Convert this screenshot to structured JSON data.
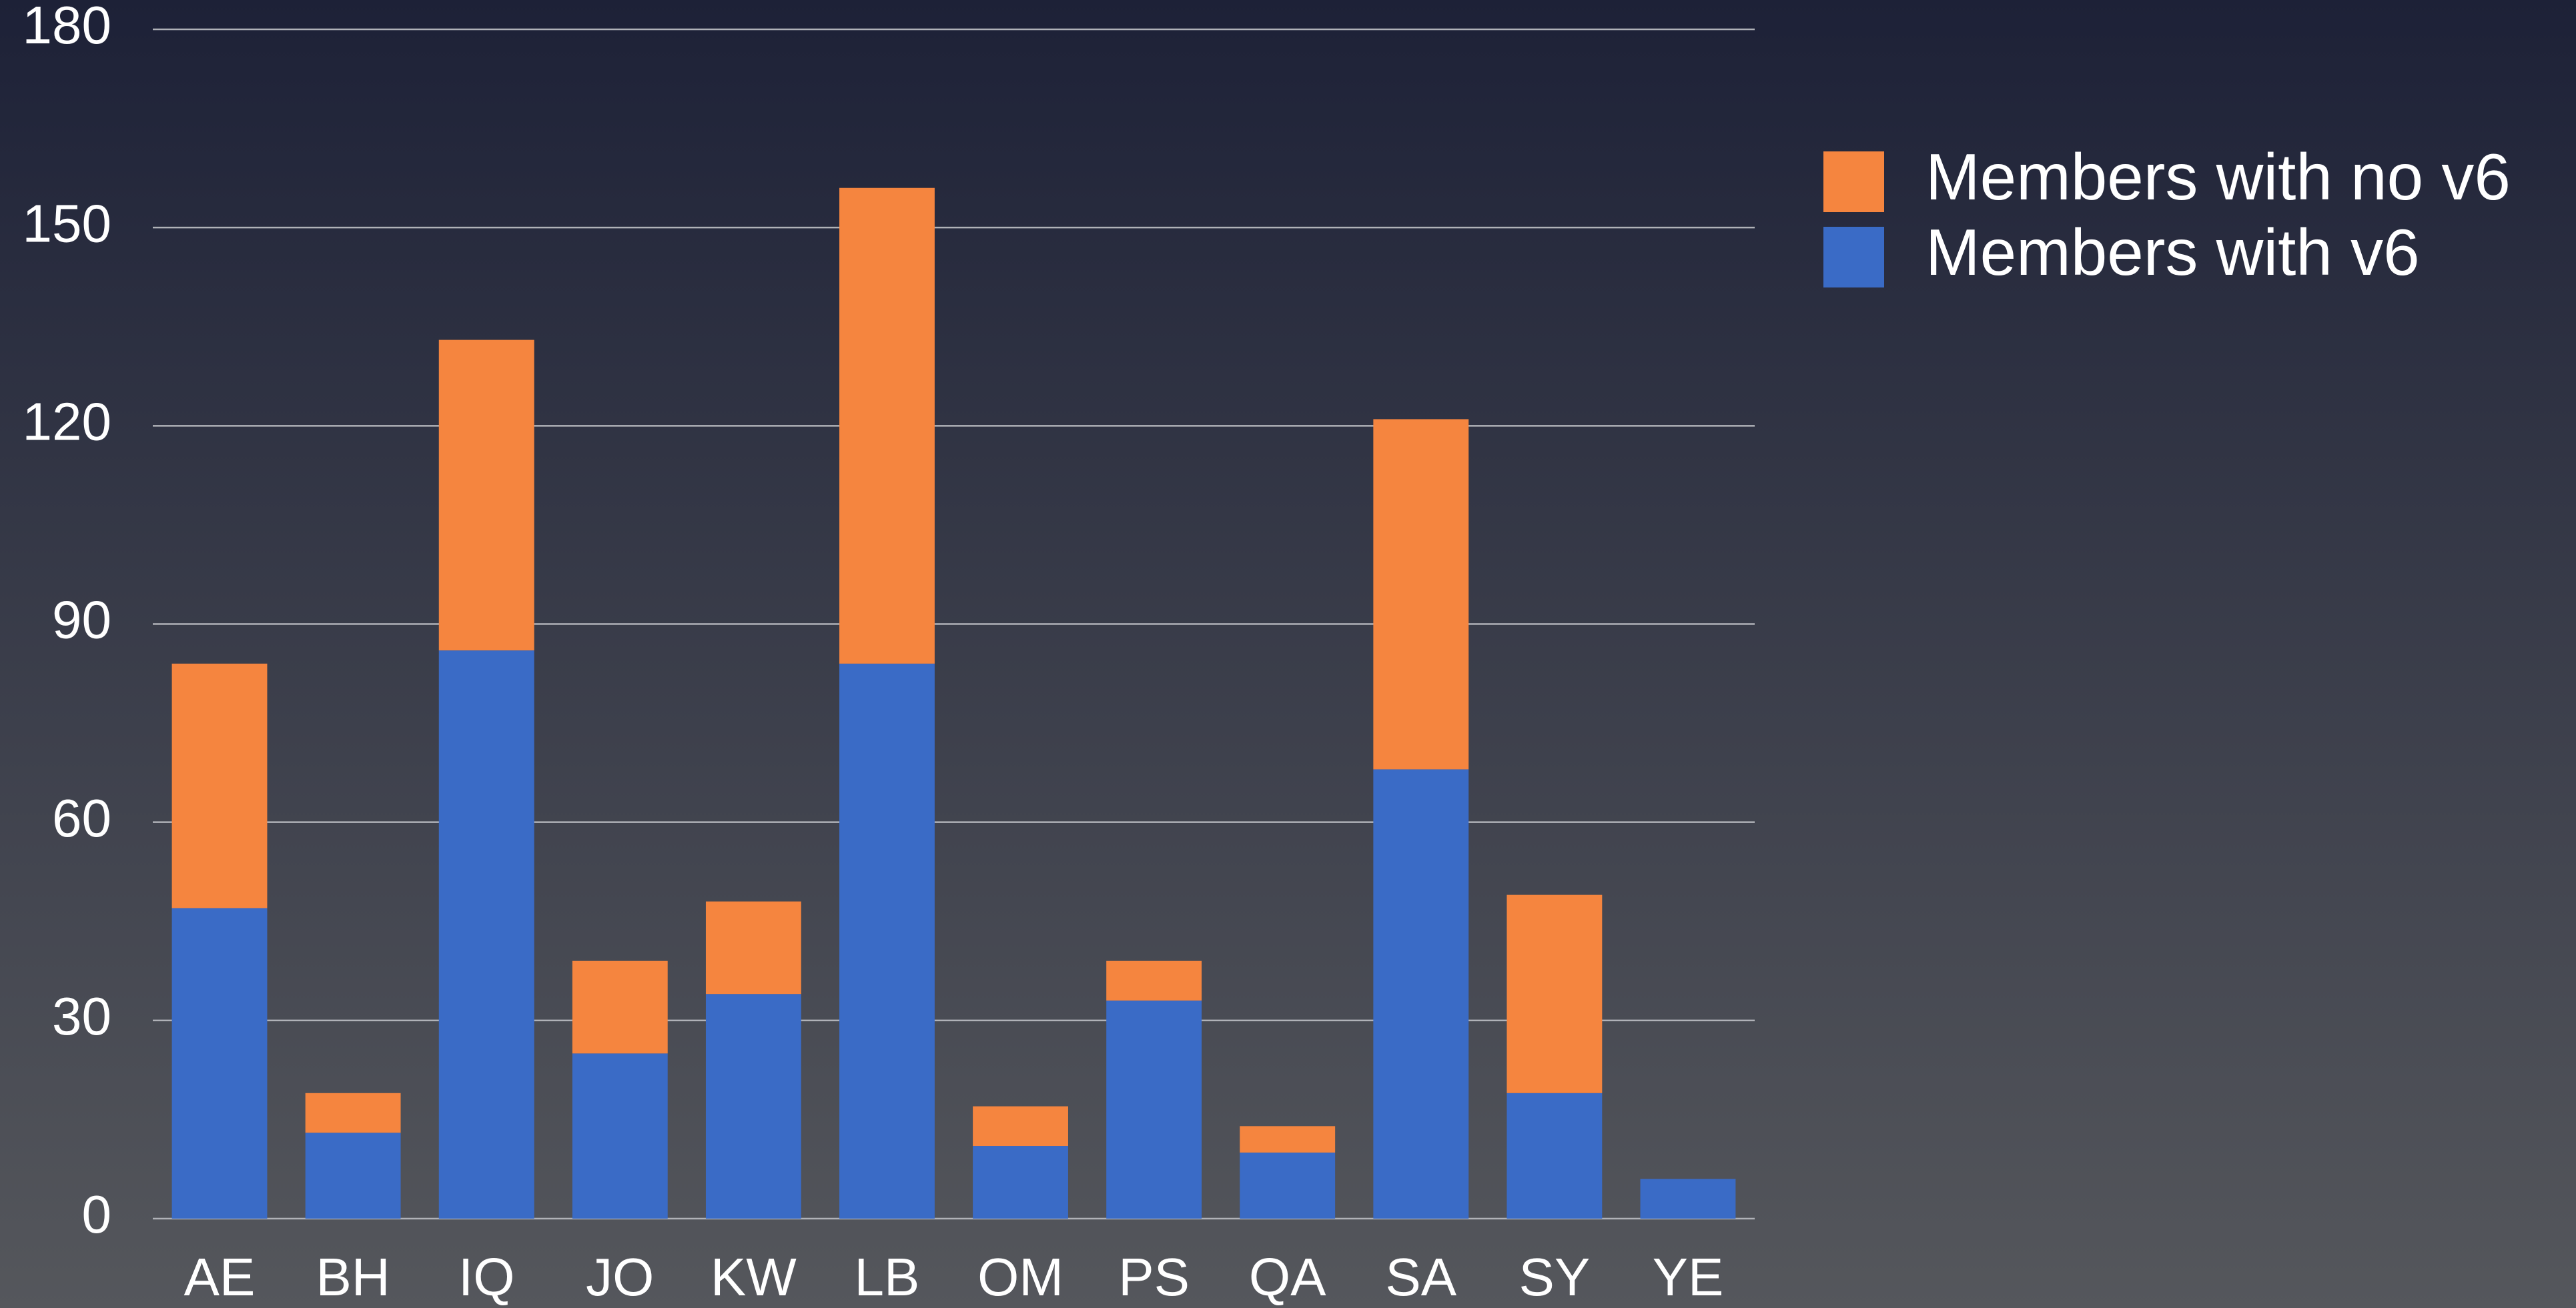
{
  "chart_data": {
    "type": "stacked_bar",
    "categories": [
      "AE",
      "BH",
      "IQ",
      "JO",
      "KW",
      "LB",
      "OM",
      "PS",
      "QA",
      "SA",
      "SY",
      "YE"
    ],
    "series": [
      {
        "name": "Members with v6",
        "color": "#3a6bc6",
        "values": [
          47,
          13,
          86,
          25,
          34,
          84,
          11,
          33,
          10,
          68,
          19,
          6
        ]
      },
      {
        "name": "Members with no v6",
        "color": "#f5853f",
        "values": [
          37,
          6,
          47,
          14,
          14,
          72,
          6,
          6,
          4,
          53,
          30,
          0
        ]
      }
    ],
    "ylim": [
      0,
      180
    ],
    "yticks": [
      0,
      30,
      60,
      90,
      120,
      150,
      180
    ],
    "grid": true,
    "legend": "upper right"
  }
}
